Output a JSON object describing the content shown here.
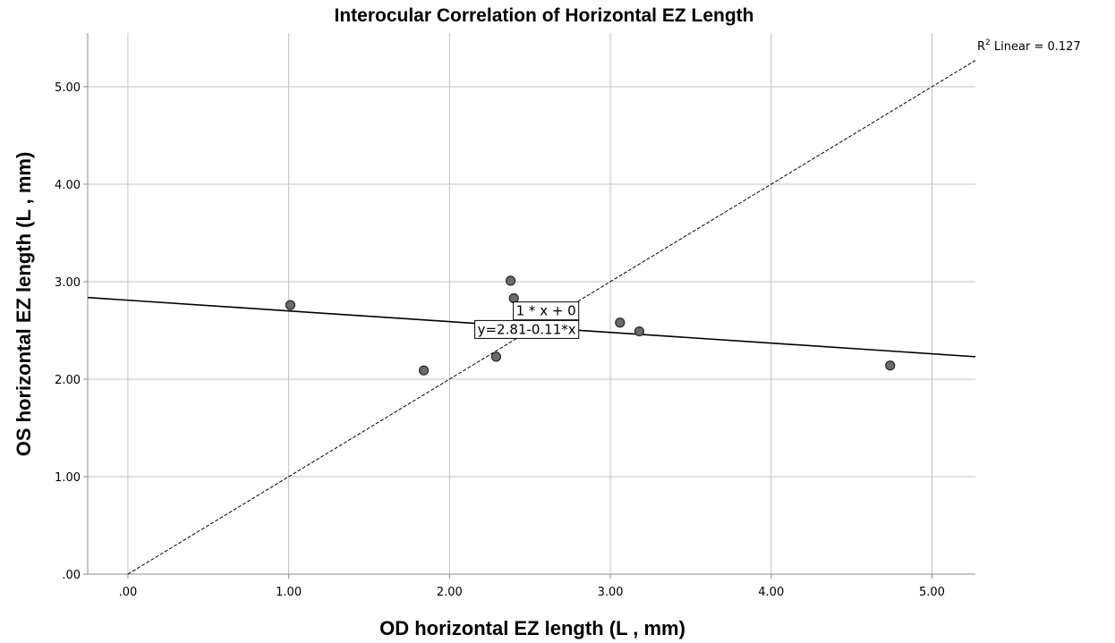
{
  "chart_data": {
    "type": "scatter",
    "title": "Interocular Correlation of Horizontal EZ Length",
    "xlabel": "OD horizontal EZ length (L , mm)",
    "ylabel": "OS horizontal EZ length (L , mm)",
    "xlim": [
      -0.25,
      5.27
    ],
    "ylim": [
      0,
      5.55
    ],
    "xticks": [
      0,
      1,
      2,
      3,
      4,
      5
    ],
    "yticks": [
      0,
      1,
      2,
      3,
      4,
      5
    ],
    "xtick_labels": [
      ".00",
      "1.00",
      "2.00",
      "3.00",
      "4.00",
      "5.00"
    ],
    "ytick_labels": [
      ".00",
      "1.00",
      "2.00",
      "3.00",
      "4.00",
      "5.00"
    ],
    "grid": true,
    "points": [
      {
        "x": 1.01,
        "y": 2.76
      },
      {
        "x": 1.84,
        "y": 2.09
      },
      {
        "x": 2.29,
        "y": 2.23
      },
      {
        "x": 2.38,
        "y": 3.01
      },
      {
        "x": 2.4,
        "y": 2.83
      },
      {
        "x": 3.06,
        "y": 2.58
      },
      {
        "x": 3.18,
        "y": 2.49
      },
      {
        "x": 4.74,
        "y": 2.14
      }
    ],
    "fit_line": {
      "intercept": 2.81,
      "slope": -0.11,
      "label": "y=2.81-0.11*x"
    },
    "reference_line": {
      "intercept": 0,
      "slope": 1,
      "label": "1 * x + 0"
    },
    "r2_note": {
      "prefix": "R",
      "superscript": "2",
      "text": " Linear = 0.127"
    },
    "colors": {
      "point_fill": "#6b6b6b",
      "point_stroke": "#262626",
      "grid": "#c2c2c2",
      "axis": "#8c8c8c",
      "fit_line": "#000000",
      "reference_line": "#000000"
    }
  }
}
